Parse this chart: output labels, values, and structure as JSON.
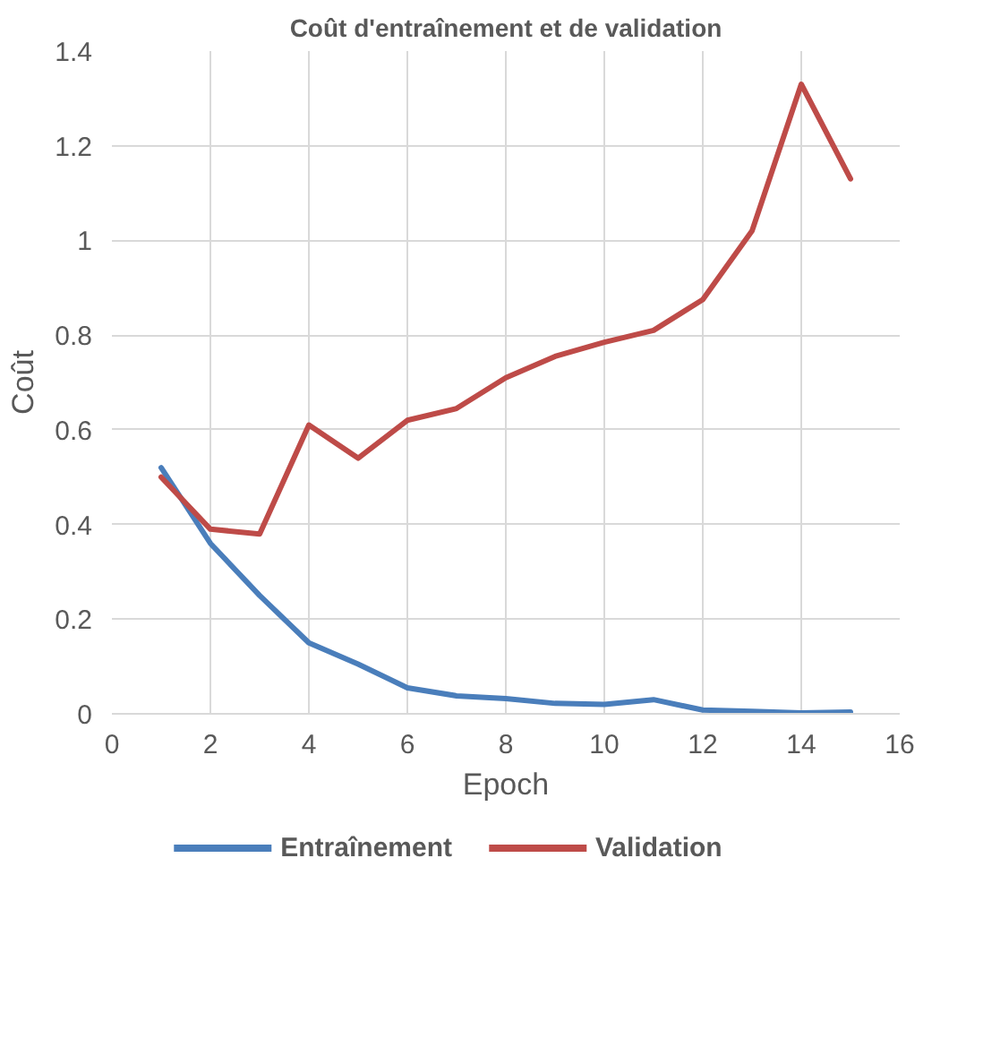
{
  "chart_data": {
    "type": "line",
    "title": "Coût d'entraînement et de validation",
    "xlabel": "Epoch",
    "ylabel": "Coût",
    "x": [
      1,
      2,
      3,
      4,
      5,
      6,
      7,
      8,
      9,
      10,
      11,
      12,
      13,
      14,
      15
    ],
    "series": [
      {
        "name": "Entraînement",
        "color": "#4a7ebb",
        "values": [
          0.52,
          0.36,
          0.25,
          0.15,
          0.105,
          0.055,
          0.038,
          0.032,
          0.022,
          0.02,
          0.03,
          0.008,
          0.005,
          0.002,
          0.004
        ]
      },
      {
        "name": "Validation",
        "color": "#be4b48",
        "values": [
          0.5,
          0.39,
          0.38,
          0.61,
          0.54,
          0.62,
          0.645,
          0.71,
          0.755,
          0.785,
          0.81,
          0.875,
          1.02,
          1.33,
          1.13
        ]
      }
    ],
    "xlim": [
      0,
      16
    ],
    "xticks": [
      0,
      2,
      4,
      6,
      8,
      10,
      12,
      14,
      16
    ],
    "ylim": [
      0,
      1.4
    ],
    "yticks": [
      0,
      0.2,
      0.4,
      0.6,
      0.8,
      1,
      1.2,
      1.4
    ],
    "grid": true,
    "legend": "bottom",
    "marker": "none",
    "line_style": "solid"
  }
}
